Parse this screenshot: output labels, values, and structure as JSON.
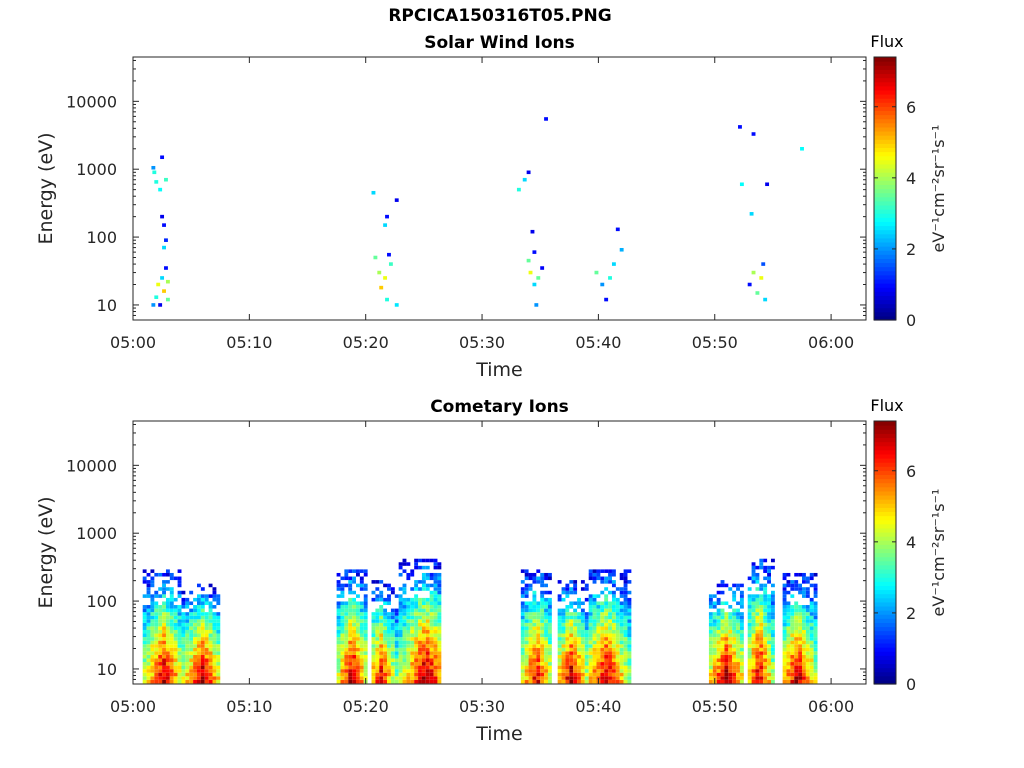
{
  "title": "RPCICA150316T05.PNG",
  "chart_data": [
    {
      "type": "heatmap",
      "title": "Solar Wind Ions",
      "xlabel": "Time",
      "ylabel": "Energy (eV)",
      "x_ticks": [
        "05:00",
        "05:10",
        "05:20",
        "05:30",
        "05:40",
        "05:50",
        "06:00"
      ],
      "xlim": [
        "05:00",
        "06:03"
      ],
      "y_scale": "log",
      "y_ticks": [
        "10",
        "100",
        "1000",
        "10000"
      ],
      "ylim": [
        6,
        45000
      ],
      "colorbar": {
        "title": "Flux",
        "label": "eV⁻¹cm⁻²sr⁻¹s⁻¹",
        "ticks": [
          "0",
          "2",
          "4",
          "6"
        ],
        "range": [
          0,
          7.4
        ],
        "colormap": "jet"
      },
      "cells": [
        [
          "05:01:45",
          10,
          2.0
        ],
        [
          "05:02:00",
          13,
          3.0
        ],
        [
          "05:02:10",
          20,
          4.5
        ],
        [
          "05:02:20",
          10,
          0.8
        ],
        [
          "05:02:30",
          25,
          2.5
        ],
        [
          "05:02:40",
          16,
          5.0
        ],
        [
          "05:02:50",
          35,
          1.0
        ],
        [
          "05:03:00",
          12,
          3.5
        ],
        [
          "05:03:00",
          22,
          4.0
        ],
        [
          "05:02:30",
          200,
          0.8
        ],
        [
          "05:02:40",
          150,
          1.0
        ],
        [
          "05:02:50",
          90,
          1.2
        ],
        [
          "05:02:40",
          70,
          2.5
        ],
        [
          "05:01:50",
          900,
          3.0
        ],
        [
          "05:02:00",
          650,
          3.0
        ],
        [
          "05:02:20",
          500,
          2.8
        ],
        [
          "05:02:50",
          700,
          3.2
        ],
        [
          "05:02:30",
          1500,
          1.0
        ],
        [
          "05:01:45",
          1050,
          2.0
        ],
        [
          "05:20:50",
          50,
          3.5
        ],
        [
          "05:21:10",
          30,
          4.0
        ],
        [
          "05:21:20",
          18,
          5.0
        ],
        [
          "05:21:40",
          25,
          4.5
        ],
        [
          "05:21:50",
          12,
          3.0
        ],
        [
          "05:22:00",
          55,
          1.0
        ],
        [
          "05:22:10",
          40,
          3.2
        ],
        [
          "05:22:40",
          10,
          2.6
        ],
        [
          "05:21:40",
          150,
          2.5
        ],
        [
          "05:21:50",
          200,
          1.0
        ],
        [
          "05:20:40",
          450,
          2.5
        ],
        [
          "05:22:40",
          350,
          0.8
        ],
        [
          "05:34:00",
          45,
          3.5
        ],
        [
          "05:34:10",
          30,
          4.5
        ],
        [
          "05:34:20",
          120,
          0.8
        ],
        [
          "05:34:30",
          60,
          1.0
        ],
        [
          "05:34:30",
          20,
          2.5
        ],
        [
          "05:34:40",
          10,
          2.0
        ],
        [
          "05:34:50",
          25,
          3.5
        ],
        [
          "05:35:10",
          35,
          0.9
        ],
        [
          "05:33:10",
          500,
          3.0
        ],
        [
          "05:33:40",
          700,
          2.5
        ],
        [
          "05:34:00",
          900,
          0.8
        ],
        [
          "05:35:30",
          5500,
          1.0
        ],
        [
          "05:39:50",
          30,
          3.5
        ],
        [
          "05:40:20",
          20,
          2.0
        ],
        [
          "05:40:40",
          12,
          1.0
        ],
        [
          "05:41:00",
          25,
          3.0
        ],
        [
          "05:41:20",
          40,
          2.5
        ],
        [
          "05:41:40",
          130,
          1.0
        ],
        [
          "05:42:00",
          65,
          2.2
        ],
        [
          "05:52:10",
          4200,
          1.0
        ],
        [
          "05:53:20",
          3300,
          1.0
        ],
        [
          "05:52:20",
          600,
          2.8
        ],
        [
          "05:53:10",
          220,
          2.5
        ],
        [
          "05:54:30",
          600,
          0.8
        ],
        [
          "05:57:30",
          2000,
          2.8
        ],
        [
          "05:53:00",
          20,
          1.0
        ],
        [
          "05:53:20",
          30,
          4.0
        ],
        [
          "05:53:40",
          15,
          3.5
        ],
        [
          "05:54:00",
          25,
          4.5
        ],
        [
          "05:54:10",
          40,
          1.5
        ],
        [
          "05:54:20",
          12,
          2.5
        ]
      ]
    },
    {
      "type": "heatmap",
      "title": "Cometary Ions",
      "xlabel": "Time",
      "ylabel": "Energy (eV)",
      "x_ticks": [
        "05:00",
        "05:10",
        "05:20",
        "05:30",
        "05:40",
        "05:50",
        "06:00"
      ],
      "xlim": [
        "05:00",
        "06:03"
      ],
      "y_scale": "log",
      "y_ticks": [
        "10",
        "100",
        "1000",
        "10000"
      ],
      "ylim": [
        6,
        45000
      ],
      "colorbar": {
        "title": "Flux",
        "label": "eV⁻¹cm⁻²sr⁻¹s⁻¹",
        "ticks": [
          "0",
          "2",
          "4",
          "6"
        ],
        "range": [
          0,
          7.4
        ],
        "colormap": "jet"
      },
      "bursts": [
        {
          "start": "05:01:00",
          "end": "05:04:00",
          "peak": "05:02:40",
          "top_eV": 280,
          "peak_flux": 7.0
        },
        {
          "start": "05:04:20",
          "end": "05:07:20",
          "peak": "05:06:00",
          "top_eV": 180,
          "peak_flux": 7.2
        },
        {
          "start": "05:17:40",
          "end": "05:20:00",
          "peak": "05:18:50",
          "top_eV": 300,
          "peak_flux": 7.2
        },
        {
          "start": "05:20:40",
          "end": "05:22:40",
          "peak": "05:21:20",
          "top_eV": 200,
          "peak_flux": 6.8
        },
        {
          "start": "05:23:00",
          "end": "05:26:30",
          "peak": "05:25:10",
          "top_eV": 400,
          "peak_flux": 7.3
        },
        {
          "start": "05:33:30",
          "end": "05:36:00",
          "peak": "05:34:40",
          "top_eV": 300,
          "peak_flux": 6.8
        },
        {
          "start": "05:36:40",
          "end": "05:39:00",
          "peak": "05:37:40",
          "top_eV": 200,
          "peak_flux": 7.2
        },
        {
          "start": "05:39:20",
          "end": "05:42:40",
          "peak": "05:40:40",
          "top_eV": 300,
          "peak_flux": 7.0
        },
        {
          "start": "05:49:40",
          "end": "05:52:30",
          "peak": "05:51:00",
          "top_eV": 200,
          "peak_flux": 7.3
        },
        {
          "start": "05:53:00",
          "end": "05:55:00",
          "peak": "05:53:50",
          "top_eV": 430,
          "peak_flux": 7.0
        },
        {
          "start": "05:56:00",
          "end": "05:58:40",
          "peak": "05:57:10",
          "top_eV": 250,
          "peak_flux": 7.2
        }
      ]
    }
  ]
}
